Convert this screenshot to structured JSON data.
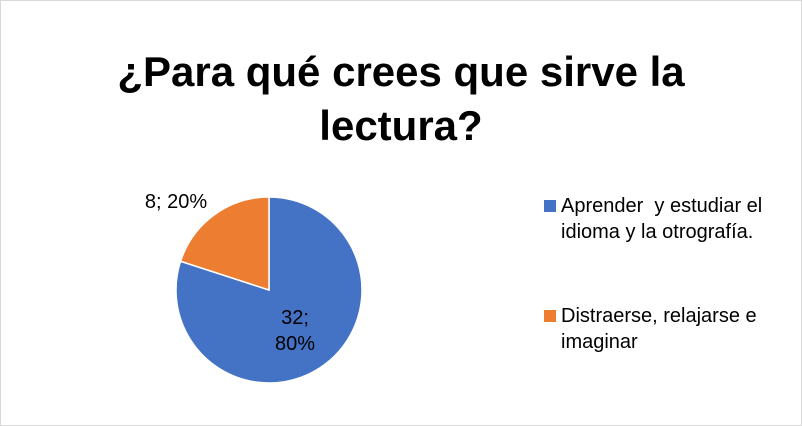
{
  "chart_data": {
    "type": "pie",
    "title": "¿Para qué crees que sirve la lectura?",
    "categories": [
      "Aprender  y estudiar el idioma y la otrografía.",
      "Distraerse, relajarse e imaginar"
    ],
    "values": [
      32,
      8
    ],
    "value_labels": [
      "32; 80%",
      "8; 20%"
    ],
    "colors": [
      "#4472c4",
      "#ed7d31"
    ],
    "legend": "right"
  }
}
